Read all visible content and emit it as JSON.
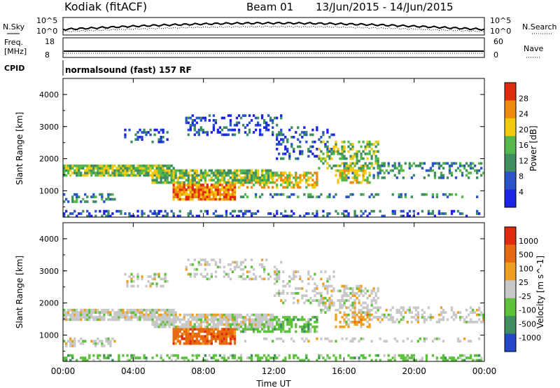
{
  "header": {
    "station": "Kodiak (fitACF)",
    "beam": "Beam 01",
    "date_range": "13/Jun/2015 - 14/Jun/2015"
  },
  "top_panels": {
    "nsky_label": "N.Sky",
    "nsky_ticks": [
      "10^5",
      "10^0"
    ],
    "nsearch_label": "N.Search",
    "nsearch_ticks": [
      "10^5",
      "10^0"
    ],
    "freq_label": "Freq.",
    "freq_unit": "[MHz]",
    "freq_ticks": [
      "18",
      "8"
    ],
    "nave_label": "Nave",
    "nave_ticks": [
      "60",
      "0"
    ],
    "cpid_label": "CPID",
    "cpid_text": "normalsound (fast) 157 RF"
  },
  "chart_data": [
    {
      "type": "heatmap",
      "name": "power",
      "ylabel": "Slant Range [km]",
      "y_ticks": [
        "4000",
        "3000",
        "2000",
        "1000"
      ],
      "x_ticks": [
        "00:00",
        "04:00",
        "08:00",
        "12:00",
        "16:00",
        "20:00",
        "00:00"
      ],
      "colorbar_label": "Power [dB]",
      "colorbar_ticks": [
        "28",
        "24",
        "20",
        "16",
        "12",
        "8",
        "4"
      ],
      "colors": [
        "#1c24e8",
        "#2a54c8",
        "#3f8e5f",
        "#55b84a",
        "#f2c90d",
        "#ee8a10",
        "#e02a10"
      ]
    },
    {
      "type": "heatmap",
      "name": "velocity",
      "ylabel": "Slant Range [km]",
      "y_ticks": [
        "4000",
        "3000",
        "2000",
        "1000"
      ],
      "x_ticks": [
        "00:00",
        "04:00",
        "08:00",
        "12:00",
        "16:00",
        "20:00",
        "00:00"
      ],
      "xlabel": "Time UT",
      "colorbar_label": "Velocity [m s^-1]",
      "colorbar_ticks": [
        "1000",
        "500",
        "100",
        "25",
        "-25",
        "-100",
        "-500",
        "-1000"
      ],
      "colors": [
        "#2446c8",
        "#3f8e5f",
        "#5bc23a",
        "#c8c8c8",
        "#f0a020",
        "#e86a10",
        "#e02a10"
      ]
    }
  ]
}
